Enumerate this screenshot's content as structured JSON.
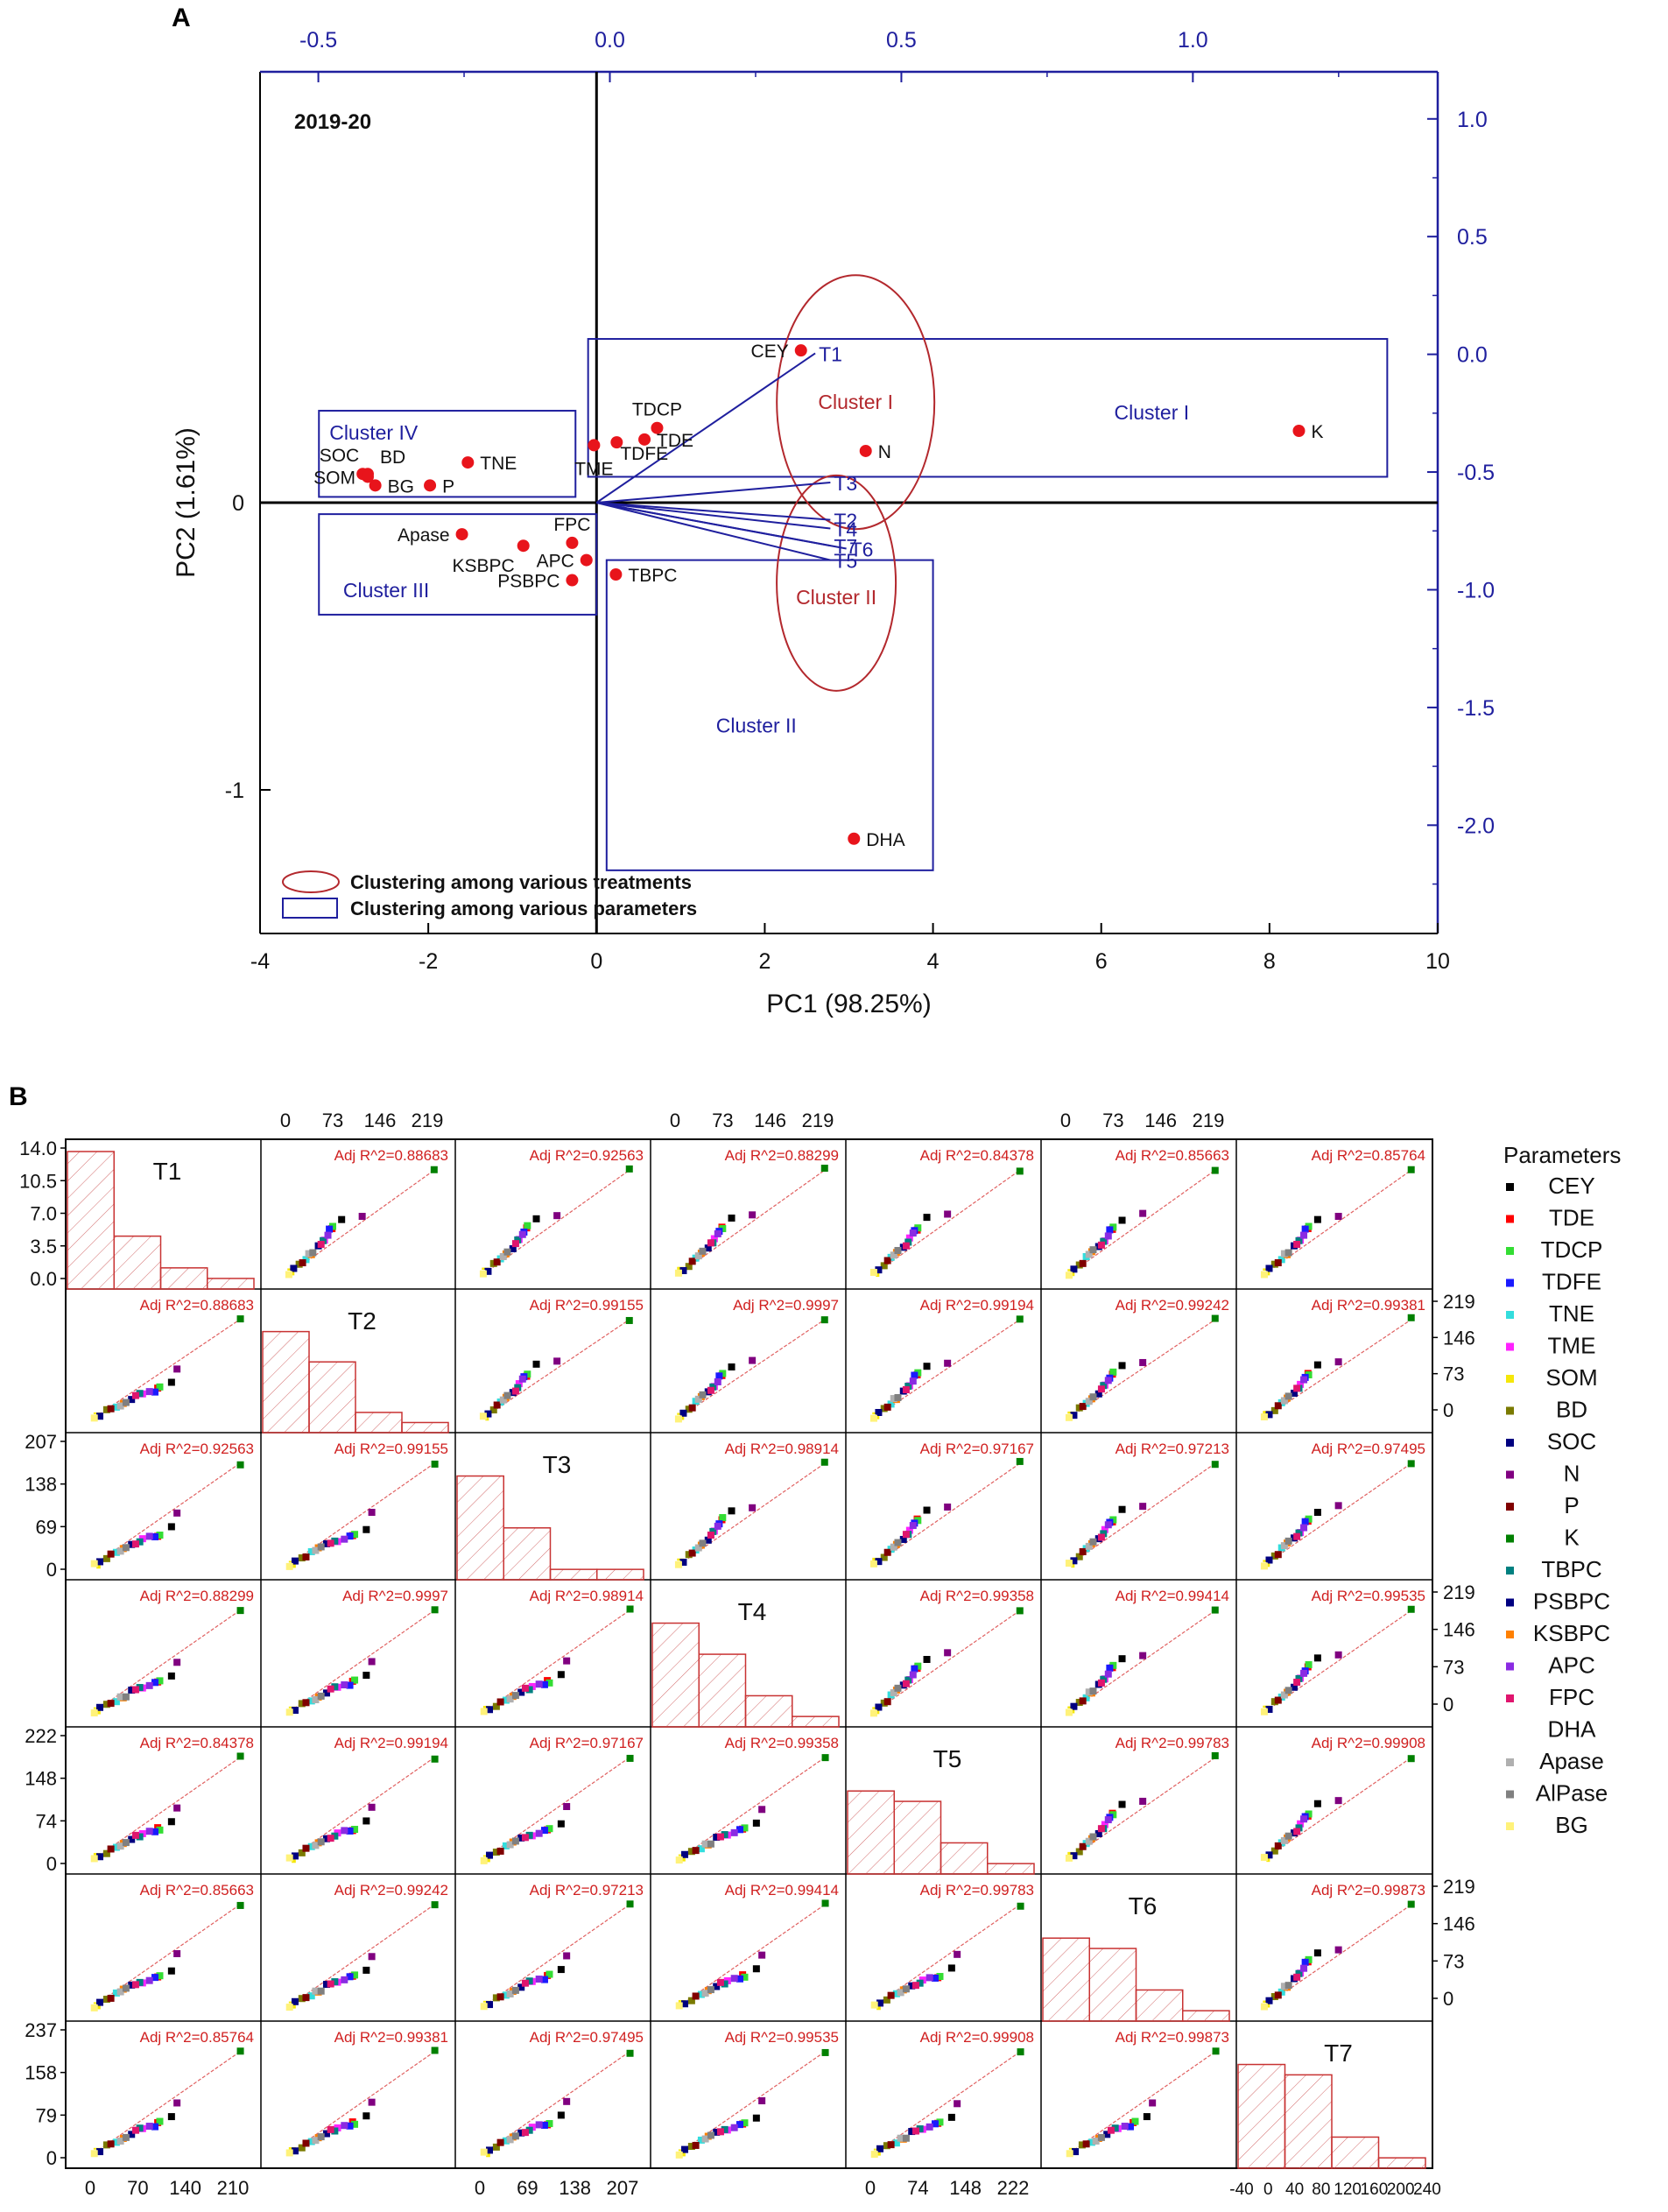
{
  "panel_labels": {
    "a": "A",
    "b": "B"
  },
  "chart_data": [
    {
      "type": "scatter",
      "title": "2019-20",
      "xlabel": "PC1 (98.25%)",
      "ylabel": "PC2 (1.61%)",
      "xlim": [
        -4,
        10
      ],
      "ylim": [
        -1.5,
        1.5
      ],
      "x_ticks": [
        -4,
        -2,
        0,
        2,
        4,
        6,
        8,
        10
      ],
      "y_ticks": [
        -1,
        0
      ],
      "top_axis": {
        "lim": [
          -0.6,
          1.42
        ],
        "ticks": [
          "-0.5",
          "0.0",
          "0.5",
          "1.0"
        ],
        "values": [
          -0.5,
          0.0,
          0.5,
          1.0
        ]
      },
      "right_axis": {
        "lim": [
          -2.46,
          1.2
        ],
        "ticks": [
          "1.0",
          "0.5",
          "0.0",
          "-0.5",
          "-1.0",
          "-1.5",
          "-2.0"
        ],
        "values": [
          1.0,
          0.5,
          0.0,
          -0.5,
          -1.0,
          -1.5,
          -2.0
        ]
      },
      "points": [
        {
          "label": "CEY",
          "x": 2.43,
          "y": 0.53,
          "pos": "left"
        },
        {
          "label": "TDCP",
          "x": 0.72,
          "y": 0.26,
          "pos": "above"
        },
        {
          "label": "TDE",
          "x": 0.57,
          "y": 0.22,
          "pos": "right"
        },
        {
          "label": "TDFE",
          "x": 0.24,
          "y": 0.21,
          "pos": "below-right"
        },
        {
          "label": "TME",
          "x": -0.03,
          "y": 0.2,
          "pos": "below"
        },
        {
          "label": "K",
          "x": 8.35,
          "y": 0.25,
          "pos": "right"
        },
        {
          "label": "N",
          "x": 3.2,
          "y": 0.18,
          "pos": "right"
        },
        {
          "label": "TNE",
          "x": -1.53,
          "y": 0.14,
          "pos": "right"
        },
        {
          "label": "SOC",
          "x": -2.78,
          "y": 0.1,
          "pos": "above-left"
        },
        {
          "label": "BD",
          "x": -2.72,
          "y": 0.1,
          "pos": "above-right"
        },
        {
          "label": "SOM",
          "x": -2.72,
          "y": 0.09,
          "pos": "left"
        },
        {
          "label": "BG",
          "x": -2.63,
          "y": 0.06,
          "pos": "right"
        },
        {
          "label": "P",
          "x": -1.98,
          "y": 0.06,
          "pos": "right"
        },
        {
          "label": "Apase",
          "x": -1.6,
          "y": -0.11,
          "pos": "left"
        },
        {
          "label": "FPC",
          "x": -0.29,
          "y": -0.14,
          "pos": "above"
        },
        {
          "label": "KSBPC",
          "x": -0.87,
          "y": -0.15,
          "pos": "below-left"
        },
        {
          "label": "APC",
          "x": -0.12,
          "y": -0.2,
          "pos": "left"
        },
        {
          "label": "PSBPC",
          "x": -0.29,
          "y": -0.27,
          "pos": "left"
        },
        {
          "label": "TBPC",
          "x": 0.23,
          "y": -0.25,
          "pos": "right"
        },
        {
          "label": "DHA",
          "x": 3.06,
          "y": -1.17,
          "pos": "right"
        }
      ],
      "vectors": [
        {
          "label": "T1",
          "x": 2.6,
          "y": 0.52
        },
        {
          "label": "T3",
          "x": 2.78,
          "y": 0.07
        },
        {
          "label": "T2",
          "x": 2.78,
          "y": -0.06
        },
        {
          "label": "T4",
          "x": 2.78,
          "y": -0.09
        },
        {
          "label": "T7",
          "x": 2.78,
          "y": -0.15
        },
        {
          "label": "T6",
          "x": 2.97,
          "y": -0.16
        },
        {
          "label": "T5",
          "x": 2.78,
          "y": -0.2
        }
      ],
      "clusters_params": [
        "Cluster I",
        "Cluster II",
        "Cluster III",
        "Cluster IV"
      ],
      "clusters_treatments": [
        "Cluster I",
        "Cluster II"
      ],
      "legend": [
        "Clustering among various treatments",
        "Clustering among various parameters"
      ],
      "colors": {
        "point": "#e8141b",
        "axis_blue": "#1f1f9e",
        "ellipse": "#b3282d",
        "text": "#111111"
      }
    },
    {
      "type": "scatter-matrix",
      "variables": [
        "T1",
        "T2",
        "T3",
        "T4",
        "T5",
        "T6",
        "T7"
      ],
      "adj_r2_label": "Adj R^2=",
      "adj_r2": [
        [
          null,
          "0.88683",
          "0.92563",
          "0.88299",
          "0.84378",
          "0.85663",
          "0.85764"
        ],
        [
          "0.88683",
          null,
          "0.99155",
          "0.9997",
          "0.99194",
          "0.99242",
          "0.99381"
        ],
        [
          "0.92563",
          "0.99155",
          null,
          "0.98914",
          "0.97167",
          "0.97213",
          "0.97495"
        ],
        [
          "0.88299",
          "0.9997",
          "0.98914",
          null,
          "0.99358",
          "0.99414",
          "0.99535"
        ],
        [
          "0.84378",
          "0.99194",
          "0.97167",
          "0.99358",
          null,
          "0.99783",
          "0.99908"
        ],
        [
          "0.85663",
          "0.99242",
          "0.97213",
          "0.99414",
          "0.99783",
          null,
          "0.99873"
        ],
        [
          "0.85764",
          "0.99381",
          "0.97495",
          "0.99535",
          "0.99908",
          "0.99873",
          null
        ]
      ],
      "histograms": [
        [
          13,
          5,
          2,
          1
        ],
        [
          10,
          7,
          2,
          1
        ],
        [
          10,
          5,
          1,
          1
        ],
        [
          10,
          7,
          3,
          1
        ],
        [
          8,
          7,
          3,
          1
        ],
        [
          8,
          7,
          3,
          1
        ],
        [
          10,
          9,
          3,
          1
        ]
      ],
      "left_ticks": [
        [
          "14.0",
          "10.5",
          "7.0",
          "3.5",
          "0.0"
        ],
        [],
        [
          "207",
          "138",
          "69",
          "0"
        ],
        [],
        [
          "222",
          "148",
          "74",
          "0"
        ],
        [],
        [
          "237",
          "158",
          "79",
          "0"
        ]
      ],
      "right_ticks": [
        "219",
        "146",
        "73",
        "0"
      ],
      "top_ticks": [
        "0",
        "73",
        "146",
        "219"
      ],
      "bottom_ticks": [
        [
          "0",
          "70",
          "140",
          "210"
        ],
        [],
        [
          "0",
          "69",
          "138",
          "207"
        ],
        [],
        [
          "0",
          "74",
          "148",
          "222"
        ],
        [],
        [
          "-40",
          "0",
          "40",
          "80",
          "120",
          "160",
          "200",
          "240"
        ]
      ],
      "legend_title": "Parameters",
      "parameters": [
        {
          "name": "CEY",
          "color": "#000000",
          "x": 118,
          "y": 82
        },
        {
          "name": "TDE",
          "color": "#ff0000",
          "x": 98,
          "y": 68
        },
        {
          "name": "TDCP",
          "color": "#33dd33",
          "x": 101,
          "y": 69
        },
        {
          "name": "TDFE",
          "color": "#1a1aff",
          "x": 94,
          "y": 64
        },
        {
          "name": "TNE",
          "color": "#33dddd",
          "x": 38,
          "y": 30
        },
        {
          "name": "TME",
          "color": "#ff22ff",
          "x": 76,
          "y": 57
        },
        {
          "name": "SOM",
          "color": "#f5e70a",
          "x": 10,
          "y": 8
        },
        {
          "name": "BD",
          "color": "#7a7a00",
          "x": 24,
          "y": 20
        },
        {
          "name": "SOC",
          "color": "#000080",
          "x": 14,
          "y": 12
        },
        {
          "name": "N",
          "color": "#800080",
          "x": 126,
          "y": 112
        },
        {
          "name": "P",
          "color": "#800000",
          "x": 30,
          "y": 25
        },
        {
          "name": "K",
          "color": "#008000",
          "x": 218,
          "y": 217
        },
        {
          "name": "TBPC",
          "color": "#008080",
          "x": 72,
          "y": 55
        },
        {
          "name": "PSBPC",
          "color": "#000080",
          "x": 60,
          "y": 48
        },
        {
          "name": "KSBPC",
          "color": "#ff8000",
          "x": 48,
          "y": 38
        },
        {
          "name": "APC",
          "color": "#8a2be2",
          "x": 86,
          "y": 62
        },
        {
          "name": "FPC",
          "color": "#e0156e",
          "x": 66,
          "y": 52
        },
        {
          "name": "DHA",
          "color": "#ffffff",
          "x": 4,
          "y": 3
        },
        {
          "name": "Apase",
          "color": "#b0b0b0",
          "x": 44,
          "y": 34
        },
        {
          "name": "AlPase",
          "color": "#808080",
          "x": 52,
          "y": 40
        },
        {
          "name": "BG",
          "color": "#fff27a",
          "x": 6,
          "y": 5
        }
      ],
      "colors": {
        "fit_line": "#e06060",
        "hist": "#c83232",
        "r2_text": "#d02020"
      }
    }
  ]
}
